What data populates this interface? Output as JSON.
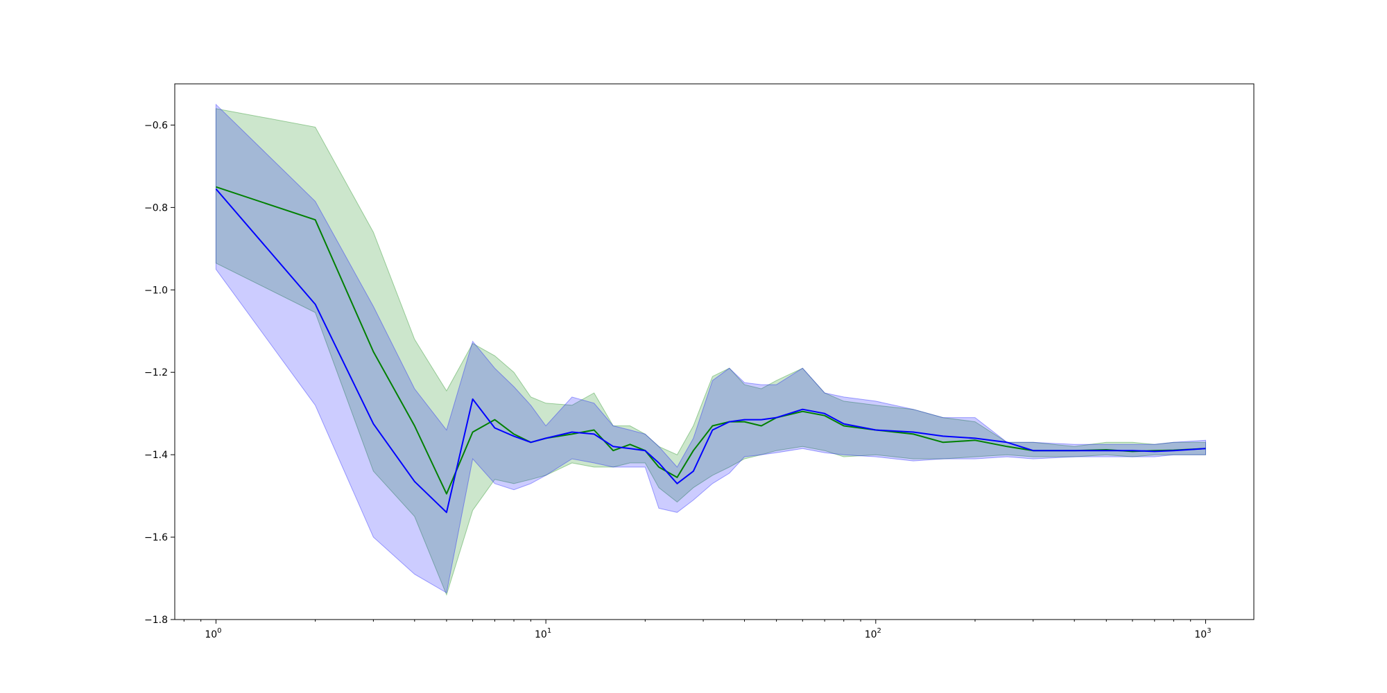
{
  "chart_data": {
    "type": "line",
    "title": "",
    "xlabel": "",
    "ylabel": "",
    "xscale": "log",
    "xlim": [
      0.75,
      1400
    ],
    "ylim": [
      -1.8,
      -0.5
    ],
    "grid": false,
    "legend": "none",
    "y_ticks": [
      -1.8,
      -1.6,
      -1.4,
      -1.2,
      -1.0,
      -0.8,
      -0.6
    ],
    "y_tick_labels": [
      "−1.8",
      "−1.6",
      "−1.4",
      "−1.2",
      "−1.0",
      "−0.8",
      "−0.6"
    ],
    "x_ticks": [
      {
        "value": 1,
        "base": "10",
        "exp": "0"
      },
      {
        "value": 10,
        "base": "10",
        "exp": "1"
      },
      {
        "value": 100,
        "base": "10",
        "exp": "2"
      },
      {
        "value": 1000,
        "base": "10",
        "exp": "3"
      }
    ],
    "series": [
      {
        "color": "#008000",
        "band_color": "#008000",
        "band_opacity": 0.2,
        "x": [
          1,
          2,
          3,
          4,
          5,
          6,
          7,
          8,
          9,
          10,
          12,
          14,
          16,
          18,
          20,
          22,
          25,
          28,
          32,
          36,
          40,
          45,
          50,
          60,
          70,
          80,
          100,
          130,
          160,
          200,
          250,
          300,
          400,
          500,
          600,
          700,
          800,
          1000
        ],
        "y": [
          -0.75,
          -0.83,
          -1.15,
          -1.33,
          -1.495,
          -1.345,
          -1.315,
          -1.35,
          -1.37,
          -1.36,
          -1.35,
          -1.34,
          -1.39,
          -1.375,
          -1.39,
          -1.43,
          -1.455,
          -1.39,
          -1.33,
          -1.32,
          -1.32,
          -1.33,
          -1.31,
          -1.295,
          -1.305,
          -1.33,
          -1.34,
          -1.35,
          -1.37,
          -1.365,
          -1.38,
          -1.39,
          -1.39,
          -1.388,
          -1.392,
          -1.39,
          -1.389,
          -1.385
        ],
        "upper": [
          -0.56,
          -0.605,
          -0.86,
          -1.12,
          -1.245,
          -1.13,
          -1.16,
          -1.2,
          -1.26,
          -1.275,
          -1.28,
          -1.25,
          -1.33,
          -1.33,
          -1.35,
          -1.38,
          -1.4,
          -1.33,
          -1.21,
          -1.19,
          -1.23,
          -1.24,
          -1.22,
          -1.19,
          -1.25,
          -1.27,
          -1.28,
          -1.29,
          -1.31,
          -1.32,
          -1.37,
          -1.37,
          -1.38,
          -1.37,
          -1.37,
          -1.375,
          -1.37,
          -1.37
        ],
        "lower": [
          -0.935,
          -1.055,
          -1.44,
          -1.55,
          -1.74,
          -1.535,
          -1.46,
          -1.47,
          -1.46,
          -1.45,
          -1.42,
          -1.43,
          -1.43,
          -1.42,
          -1.42,
          -1.48,
          -1.515,
          -1.48,
          -1.45,
          -1.43,
          -1.41,
          -1.4,
          -1.39,
          -1.38,
          -1.39,
          -1.405,
          -1.4,
          -1.41,
          -1.41,
          -1.405,
          -1.4,
          -1.405,
          -1.405,
          -1.4,
          -1.405,
          -1.4,
          -1.4,
          -1.4
        ]
      },
      {
        "color": "#0000ff",
        "band_color": "#0000ff",
        "band_opacity": 0.2,
        "x": [
          1,
          2,
          3,
          4,
          5,
          6,
          7,
          8,
          9,
          10,
          12,
          14,
          16,
          18,
          20,
          22,
          25,
          28,
          32,
          36,
          40,
          45,
          50,
          60,
          70,
          80,
          100,
          130,
          160,
          200,
          250,
          300,
          400,
          500,
          600,
          700,
          800,
          1000
        ],
        "y": [
          -0.755,
          -1.035,
          -1.325,
          -1.465,
          -1.54,
          -1.265,
          -1.335,
          -1.355,
          -1.37,
          -1.36,
          -1.345,
          -1.35,
          -1.38,
          -1.385,
          -1.39,
          -1.42,
          -1.47,
          -1.44,
          -1.34,
          -1.32,
          -1.315,
          -1.315,
          -1.31,
          -1.29,
          -1.3,
          -1.325,
          -1.34,
          -1.345,
          -1.355,
          -1.36,
          -1.37,
          -1.39,
          -1.39,
          -1.39,
          -1.39,
          -1.392,
          -1.39,
          -1.385
        ],
        "upper": [
          -0.55,
          -0.785,
          -1.04,
          -1.24,
          -1.34,
          -1.125,
          -1.19,
          -1.235,
          -1.28,
          -1.33,
          -1.26,
          -1.275,
          -1.33,
          -1.34,
          -1.35,
          -1.38,
          -1.43,
          -1.36,
          -1.22,
          -1.19,
          -1.225,
          -1.23,
          -1.23,
          -1.19,
          -1.25,
          -1.26,
          -1.27,
          -1.29,
          -1.31,
          -1.31,
          -1.37,
          -1.37,
          -1.375,
          -1.375,
          -1.375,
          -1.375,
          -1.37,
          -1.365
        ],
        "lower": [
          -0.95,
          -1.28,
          -1.6,
          -1.69,
          -1.735,
          -1.41,
          -1.47,
          -1.485,
          -1.47,
          -1.45,
          -1.41,
          -1.42,
          -1.43,
          -1.43,
          -1.43,
          -1.53,
          -1.54,
          -1.51,
          -1.47,
          -1.445,
          -1.405,
          -1.4,
          -1.395,
          -1.385,
          -1.395,
          -1.4,
          -1.405,
          -1.415,
          -1.41,
          -1.41,
          -1.405,
          -1.41,
          -1.405,
          -1.405,
          -1.405,
          -1.405,
          -1.4,
          -1.4
        ]
      }
    ]
  }
}
